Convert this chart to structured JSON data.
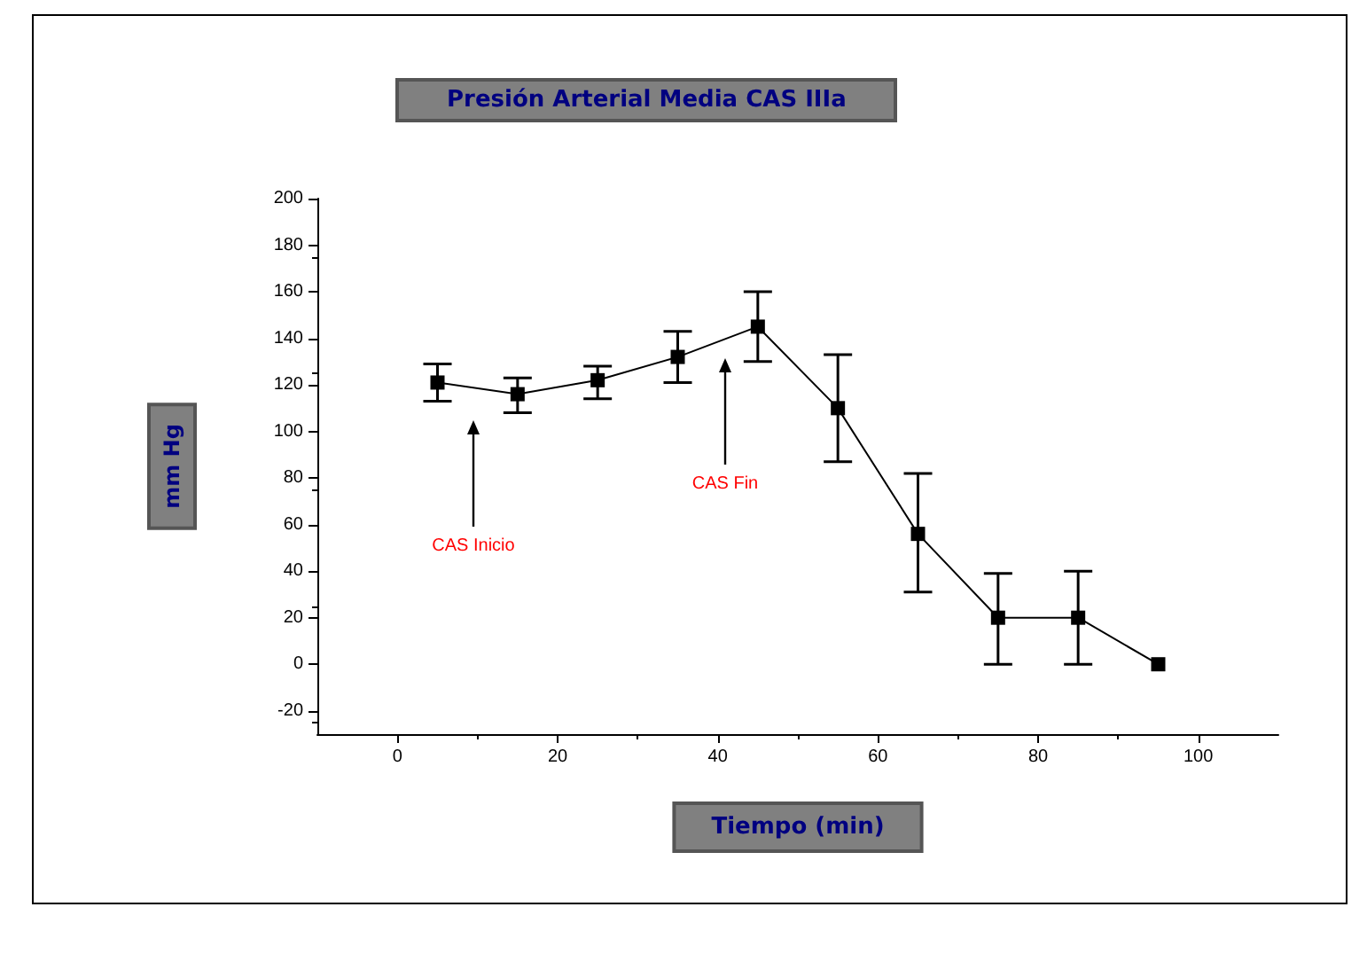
{
  "chart_data": {
    "type": "line",
    "title": "Presión Arterial Media CAS IIIa",
    "xlabel": "Tiempo (min)",
    "ylabel": "mm Hg",
    "x": [
      5,
      15,
      25,
      35,
      45,
      55,
      65,
      75,
      85,
      95
    ],
    "series": [
      {
        "color": "#000000",
        "values": [
          121,
          116,
          122,
          132,
          145,
          110,
          56,
          20,
          20,
          0
        ],
        "errors": [
          [
            113,
            129
          ],
          [
            108,
            123
          ],
          [
            114,
            128
          ],
          [
            121,
            143
          ],
          [
            130,
            160
          ],
          [
            87,
            133
          ],
          [
            31,
            82
          ],
          [
            0,
            39
          ],
          [
            0,
            40
          ],
          null
        ]
      }
    ],
    "xlim": [
      -10,
      110
    ],
    "xticks": [
      0,
      20,
      40,
      60,
      80,
      100
    ],
    "ylim": [
      -30,
      200
    ],
    "yticks": [
      -20,
      0,
      20,
      40,
      60,
      80,
      100,
      120,
      140,
      160,
      180,
      200
    ],
    "annotations": [
      "CAS Inicio",
      "CAS Fin"
    ],
    "marker": "square",
    "line_style": "solid"
  }
}
